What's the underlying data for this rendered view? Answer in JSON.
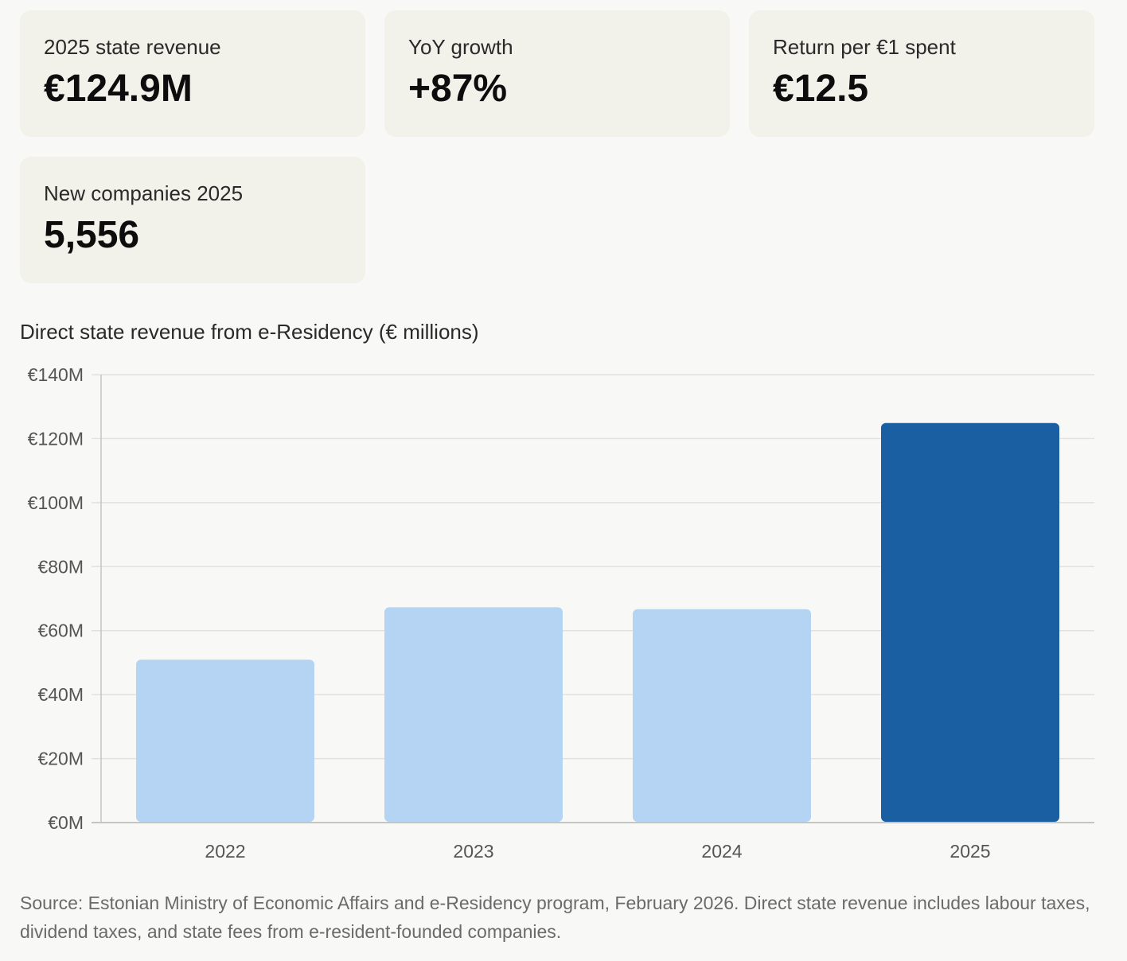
{
  "kpis": [
    {
      "label": "2025 state revenue",
      "value": "€124.9M"
    },
    {
      "label": "YoY growth",
      "value": "+87%"
    },
    {
      "label": "Return per €1 spent",
      "value": "€12.5"
    },
    {
      "label": "New companies 2025",
      "value": "5,556"
    }
  ],
  "chart_data": {
    "type": "bar",
    "title": "Direct state revenue from e-Residency (€ millions)",
    "categories": [
      "2022",
      "2023",
      "2024",
      "2025"
    ],
    "values": [
      50.9,
      67.3,
      66.7,
      124.9
    ],
    "ylim": [
      0,
      140
    ],
    "yticks": [
      0,
      20,
      40,
      60,
      80,
      100,
      120,
      140
    ],
    "ytick_labels": [
      "€0M",
      "€20M",
      "€40M",
      "€60M",
      "€80M",
      "€100M",
      "€120M",
      "€140M"
    ],
    "xlabel": "",
    "ylabel": "",
    "grid": true,
    "colors": {
      "default": "#b5d3f2",
      "highlight": "#1a5fa2",
      "grid": "#e1e1de",
      "axis": "#c4c4c0",
      "tick_text": "#555555"
    },
    "highlight_index": 3
  },
  "footnote": "Source: Estonian Ministry of Economic Affairs and e-Residency program, February 2026. Direct state revenue includes labour taxes, dividend taxes, and state fees from e-resident-founded companies."
}
